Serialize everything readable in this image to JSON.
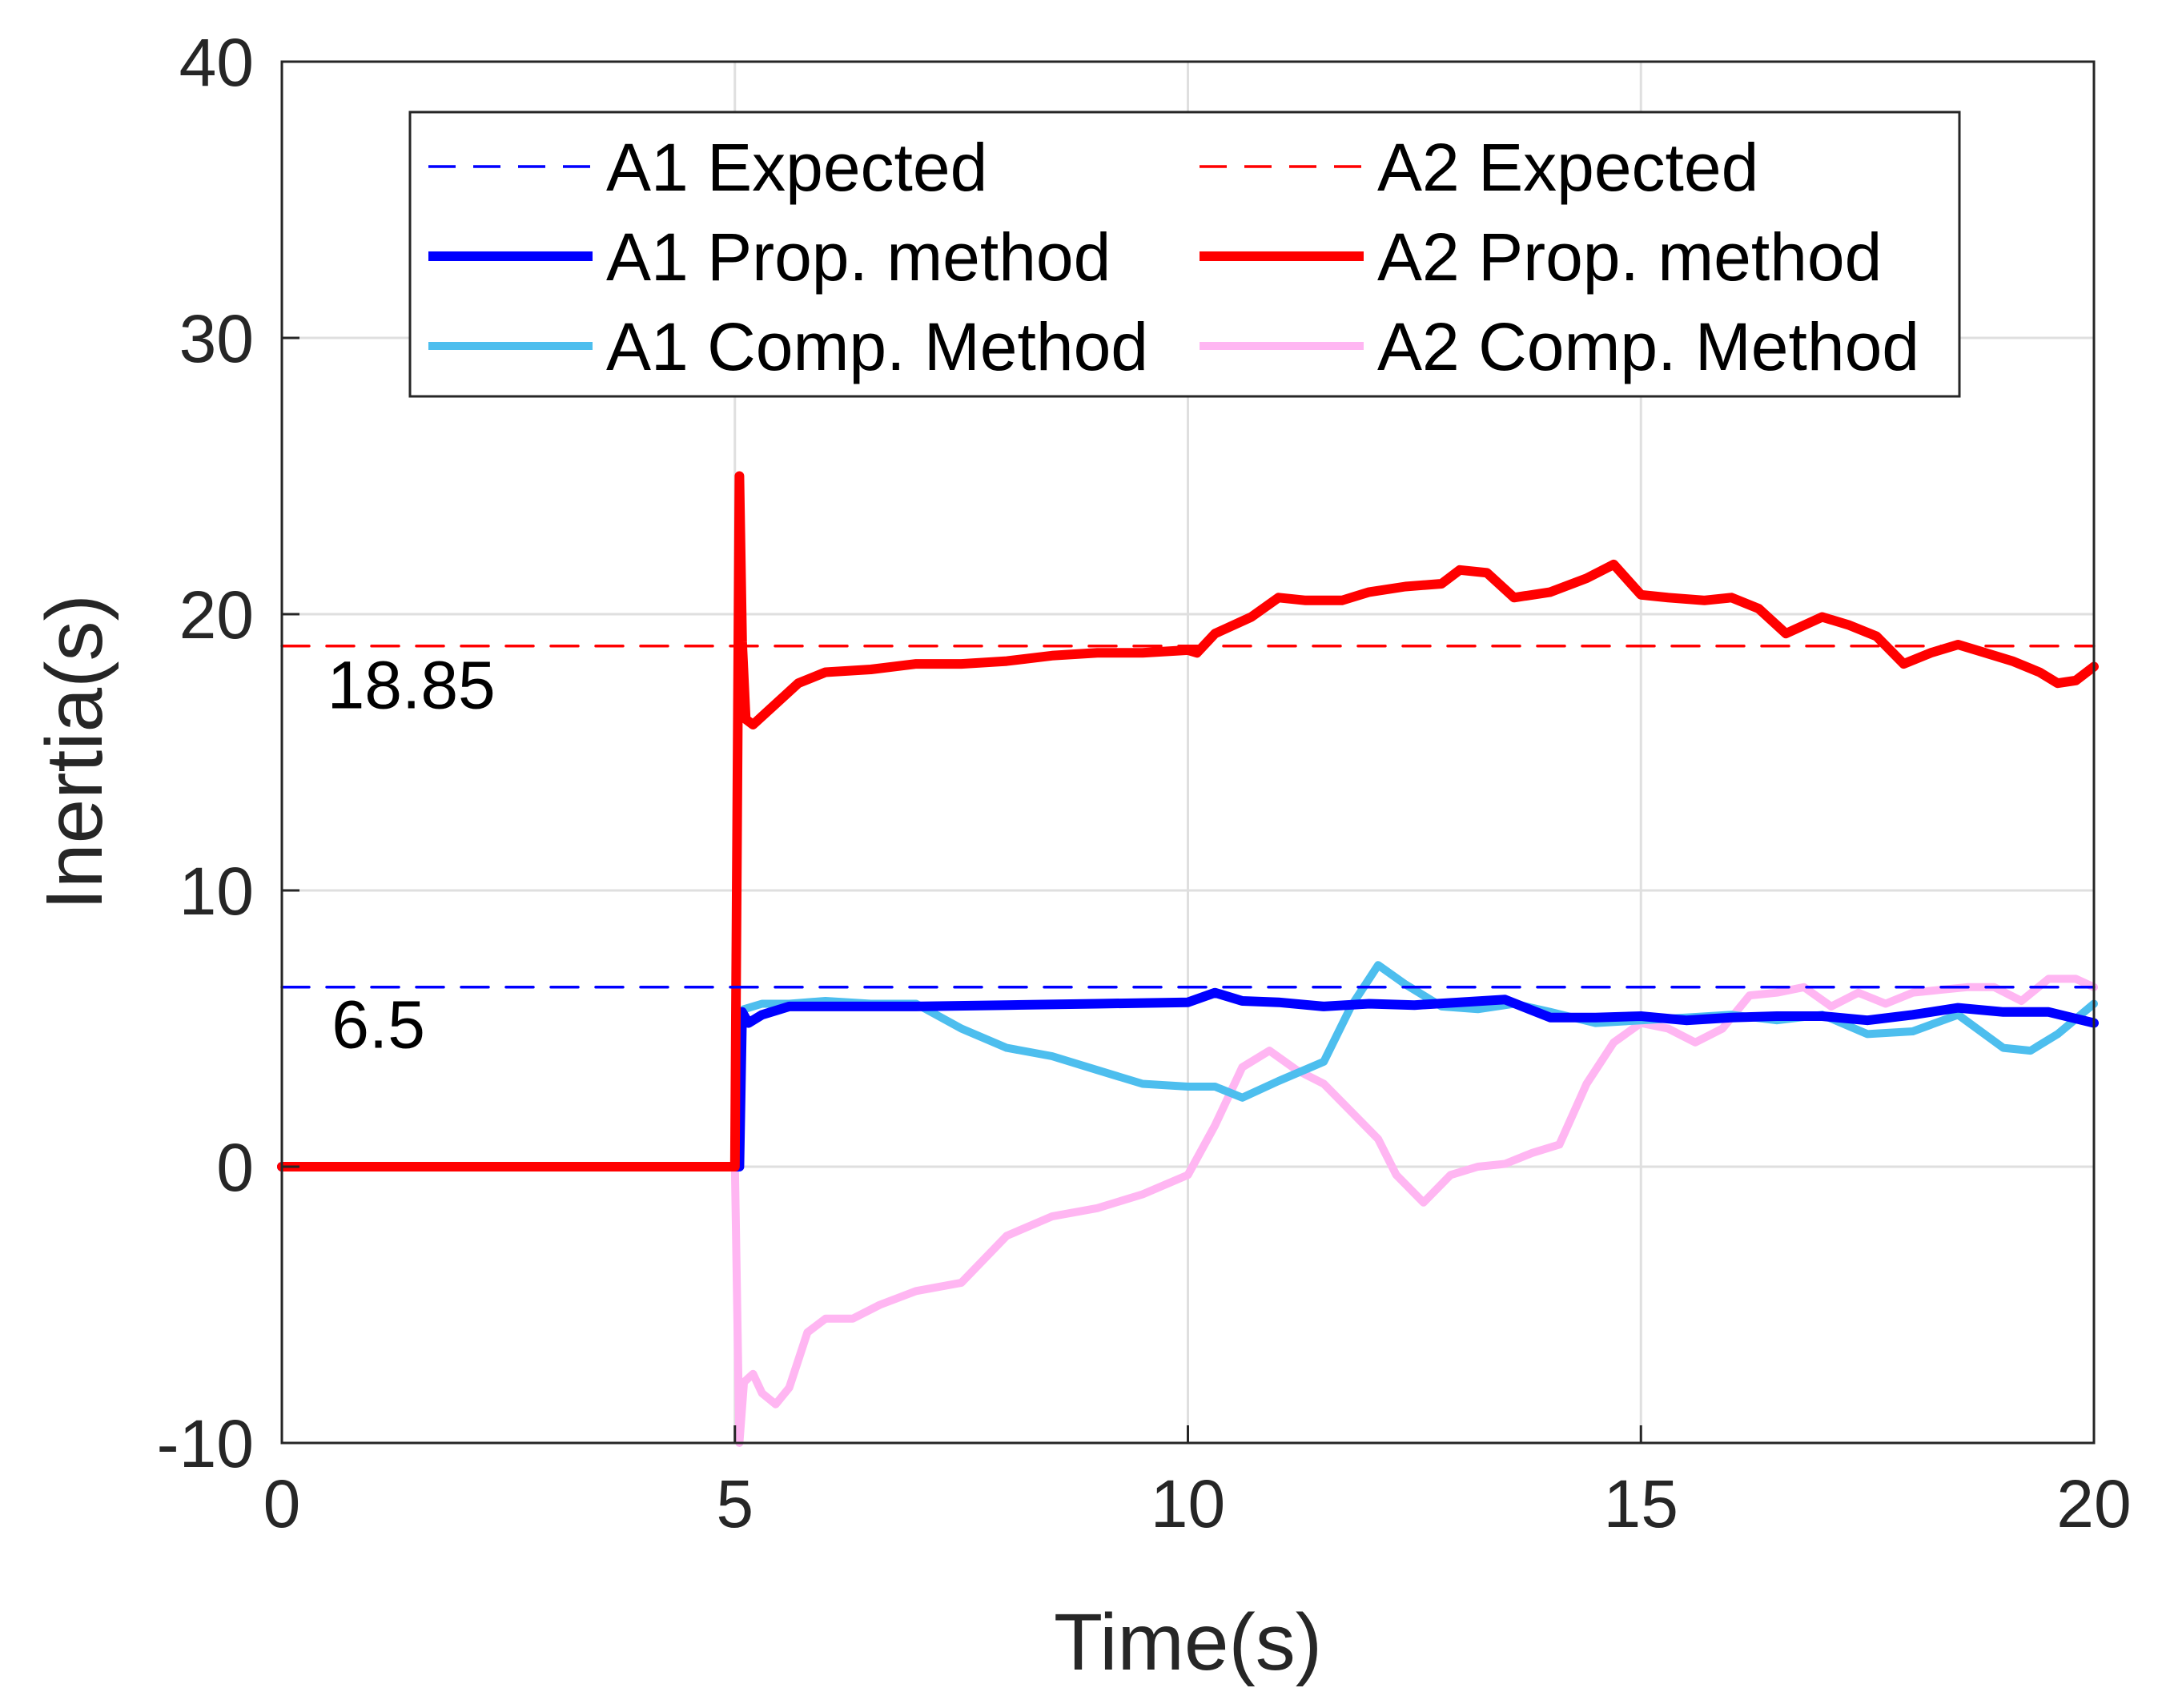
{
  "chart_data": {
    "type": "line",
    "title": "",
    "xlabel": "Time(s)",
    "ylabel": "Inertia(s)",
    "xlim": [
      0,
      20
    ],
    "ylim": [
      -10,
      40
    ],
    "xticks": [
      0,
      5,
      10,
      15,
      20
    ],
    "yticks": [
      -10,
      0,
      10,
      20,
      30,
      40
    ],
    "grid": true,
    "legend_position": "top",
    "annotations": [
      {
        "text": "18.85",
        "x": 0.5,
        "y": 16.6
      },
      {
        "text": "6.5",
        "x": 0.55,
        "y": 4.3
      }
    ],
    "series": [
      {
        "name": "A1 Expected",
        "color": "#0000ff",
        "style": "dashed",
        "x": [
          0,
          20
        ],
        "y": [
          6.5,
          6.5
        ]
      },
      {
        "name": "A2 Expected",
        "color": "#ff0000",
        "style": "dashed",
        "x": [
          0,
          20
        ],
        "y": [
          18.85,
          18.85
        ]
      },
      {
        "name": "A1 Prop. method",
        "color": "#0000ff",
        "style": "solid-thick",
        "x": [
          0,
          5.05,
          5.08,
          5.15,
          5.3,
          5.6,
          6,
          7,
          8,
          9,
          10,
          10.3,
          10.6,
          11,
          11.5,
          12,
          12.5,
          13,
          13.5,
          14,
          14.5,
          15,
          15.5,
          16,
          16.5,
          17,
          17.5,
          18,
          18.5,
          19,
          19.5,
          20
        ],
        "y": [
          0,
          0,
          5.6,
          5.2,
          5.5,
          5.8,
          5.8,
          5.8,
          5.85,
          5.9,
          5.95,
          6.3,
          6.0,
          5.95,
          5.8,
          5.9,
          5.85,
          5.95,
          6.05,
          5.4,
          5.4,
          5.45,
          5.3,
          5.4,
          5.45,
          5.45,
          5.3,
          5.5,
          5.75,
          5.6,
          5.6,
          5.2
        ]
      },
      {
        "name": "A2 Prop. method",
        "color": "#ff0000",
        "style": "solid-thick",
        "x": [
          0,
          5.0,
          5.05,
          5.08,
          5.12,
          5.2,
          5.4,
          5.7,
          6,
          6.5,
          7,
          7.5,
          8,
          8.5,
          9,
          9.5,
          10,
          10.1,
          10.3,
          10.7,
          11,
          11.3,
          11.7,
          12,
          12.4,
          12.8,
          13,
          13.3,
          13.6,
          14,
          14.4,
          14.7,
          15,
          15.3,
          15.7,
          16,
          16.3,
          16.6,
          17,
          17.3,
          17.6,
          17.9,
          18.2,
          18.5,
          18.8,
          19.1,
          19.4,
          19.6,
          19.8,
          20
        ],
        "y": [
          0,
          0,
          25,
          19,
          16.2,
          16.0,
          16.6,
          17.5,
          17.9,
          18.0,
          18.2,
          18.2,
          18.3,
          18.5,
          18.6,
          18.6,
          18.7,
          18.6,
          19.3,
          19.9,
          20.6,
          20.5,
          20.5,
          20.8,
          21.0,
          21.1,
          21.6,
          21.5,
          20.6,
          20.8,
          21.3,
          21.8,
          20.7,
          20.6,
          20.5,
          20.6,
          20.2,
          19.3,
          19.9,
          19.6,
          19.2,
          18.2,
          18.6,
          18.9,
          18.6,
          18.3,
          17.9,
          17.5,
          17.6,
          18.1
        ]
      },
      {
        "name": "A1 Comp. Method",
        "color": "#4dbeee",
        "style": "solid-thick",
        "x": [
          5.05,
          5.1,
          5.3,
          5.6,
          6.0,
          6.5,
          7.0,
          7.5,
          8.0,
          8.5,
          9.0,
          9.5,
          10.0,
          10.3,
          10.6,
          11.0,
          11.5,
          11.8,
          12.1,
          12.4,
          12.8,
          13.2,
          13.6,
          14.0,
          14.5,
          15.0,
          15.5,
          16.0,
          16.5,
          17.0,
          17.5,
          18.0,
          18.5,
          19.0,
          19.3,
          19.6,
          20.0
        ],
        "y": [
          5.0,
          5.7,
          5.9,
          5.9,
          6.0,
          5.9,
          5.9,
          5.0,
          4.3,
          4.0,
          3.5,
          3.0,
          2.9,
          2.9,
          2.5,
          3.1,
          3.8,
          5.8,
          7.3,
          6.6,
          5.8,
          5.7,
          5.9,
          5.6,
          5.2,
          5.3,
          5.4,
          5.5,
          5.3,
          5.5,
          4.8,
          4.9,
          5.5,
          4.3,
          4.2,
          4.8,
          5.9
        ]
      },
      {
        "name": "A2 Comp. Method",
        "color": "#ffb6f2",
        "style": "solid-thick",
        "x": [
          5.0,
          5.05,
          5.1,
          5.2,
          5.3,
          5.45,
          5.6,
          5.8,
          6.0,
          6.3,
          6.6,
          7.0,
          7.5,
          8.0,
          8.5,
          9.0,
          9.5,
          10.0,
          10.3,
          10.6,
          10.9,
          11.2,
          11.5,
          11.8,
          12.1,
          12.3,
          12.6,
          12.9,
          13.2,
          13.5,
          13.8,
          14.1,
          14.4,
          14.7,
          15.0,
          15.3,
          15.6,
          15.9,
          16.2,
          16.5,
          16.8,
          17.1,
          17.4,
          17.7,
          18.0,
          18.3,
          18.6,
          18.9,
          19.2,
          19.5,
          19.8,
          20.0
        ],
        "y": [
          0,
          -10,
          -7.8,
          -7.5,
          -8.2,
          -8.6,
          -8.0,
          -6.0,
          -5.5,
          -5.5,
          -5.0,
          -4.5,
          -4.2,
          -2.5,
          -1.8,
          -1.5,
          -1.0,
          -0.3,
          1.5,
          3.6,
          4.2,
          3.5,
          3.0,
          2.0,
          1.0,
          -0.3,
          -1.3,
          -0.3,
          0.0,
          0.1,
          0.5,
          0.8,
          3.0,
          4.5,
          5.2,
          5.0,
          4.5,
          5.0,
          6.2,
          6.3,
          6.5,
          5.8,
          6.3,
          5.9,
          6.3,
          6.4,
          6.5,
          6.5,
          6.0,
          6.8,
          6.8,
          6.5
        ]
      }
    ]
  }
}
